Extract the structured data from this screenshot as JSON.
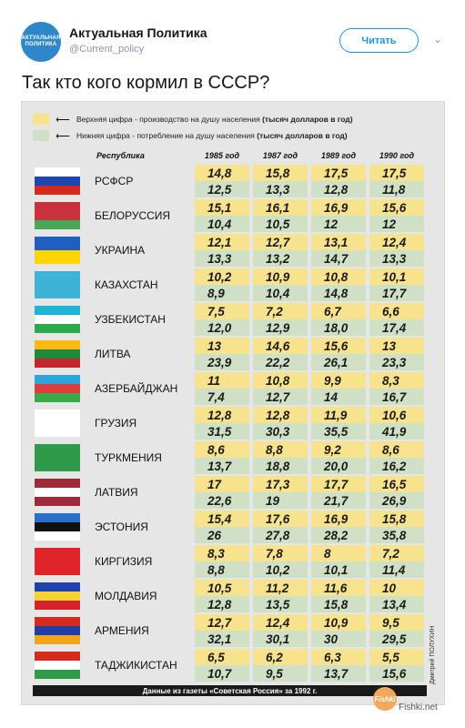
{
  "account": {
    "avatar_lines": [
      "АКТУАЛЬНАЯ",
      "ПОЛИТИКА"
    ],
    "name": "Актуальная Политика",
    "handle": "@Current_policy",
    "follow_label": "Читать",
    "menu_icon": "chevron-down-icon"
  },
  "tweet": {
    "text": "Так кто кого кормил в СССР?"
  },
  "table": {
    "legend": [
      {
        "text": "Верхняя цифра - производство на душу населения",
        "bold": "(тысяч долларов в год)",
        "color": "#f7e38e"
      },
      {
        "text": "Нижняя цифра - потребление на душу населения",
        "bold": "(тысяч долларов в год)",
        "color": "#cfe0c6"
      }
    ],
    "headers": [
      "Республика",
      "1985 год",
      "1987 год",
      "1989 год",
      "1990 год"
    ],
    "rows": [
      {
        "name": "РСФСР",
        "up": [
          "14,8",
          "15,8",
          "17,5",
          "17,5"
        ],
        "dn": [
          "12,5",
          "13,3",
          "12,8",
          "11,8"
        ],
        "flag": [
          "#ffffff",
          "#1c47b1",
          "#d52b1e"
        ]
      },
      {
        "name": "БЕЛОРУССИЯ",
        "up": [
          "15,1",
          "16,1",
          "16,9",
          "15,6"
        ],
        "dn": [
          "10,4",
          "10,5",
          "12",
          "12"
        ],
        "flag": [
          "#c8313e",
          "#c8313e",
          "#4aa657"
        ]
      },
      {
        "name": "УКРАИНА",
        "up": [
          "12,1",
          "12,7",
          "13,1",
          "12,4"
        ],
        "dn": [
          "13,3",
          "13,2",
          "14,7",
          "13,3"
        ],
        "flag": [
          "#1f5fbf",
          "#ffd500"
        ]
      },
      {
        "name": "КАЗАХСТАН",
        "up": [
          "10,2",
          "10,9",
          "10,8",
          "10,1"
        ],
        "dn": [
          "8,9",
          "10,4",
          "14,8",
          "17,7"
        ],
        "flag": [
          "#3fb3d6"
        ]
      },
      {
        "name": "УЗБЕКИСТАН",
        "up": [
          "7,5",
          "7,2",
          "6,7",
          "6,6"
        ],
        "dn": [
          "12,0",
          "12,9",
          "18,0",
          "17,4"
        ],
        "flag": [
          "#1eb4d8",
          "#ffffff",
          "#2fa84a"
        ]
      },
      {
        "name": "ЛИТВА",
        "up": [
          "13",
          "14,6",
          "15,6",
          "13"
        ],
        "dn": [
          "23,9",
          "22,2",
          "26,1",
          "23,3"
        ],
        "flag": [
          "#fdb913",
          "#1f8a3b",
          "#c1272d"
        ]
      },
      {
        "name": "АЗЕРБАЙДЖАН",
        "up": [
          "11",
          "10,8",
          "9,9",
          "8,3"
        ],
        "dn": [
          "7,4",
          "12,7",
          "14",
          "16,7"
        ],
        "flag": [
          "#2fa6d9",
          "#e03b3b",
          "#3aaa48"
        ]
      },
      {
        "name": "ГРУЗИЯ",
        "up": [
          "12,8",
          "12,8",
          "11,9",
          "10,6"
        ],
        "dn": [
          "31,5",
          "30,3",
          "35,5",
          "41,9"
        ],
        "flag": [
          "#ffffff"
        ]
      },
      {
        "name": "ТУРКМЕНИЯ",
        "up": [
          "8,6",
          "8,8",
          "9,2",
          "8,6"
        ],
        "dn": [
          "13,7",
          "18,8",
          "20,0",
          "16,2"
        ],
        "flag": [
          "#2f9a4a"
        ]
      },
      {
        "name": "ЛАТВИЯ",
        "up": [
          "17",
          "17,3",
          "17,7",
          "16,5"
        ],
        "dn": [
          "22,6",
          "19",
          "21,7",
          "26,9"
        ],
        "flag": [
          "#9e2a3a",
          "#ffffff",
          "#9e2a3a"
        ]
      },
      {
        "name": "ЭСТОНИЯ",
        "up": [
          "15,4",
          "17,6",
          "16,9",
          "15,8"
        ],
        "dn": [
          "26",
          "27,8",
          "28,2",
          "35,8"
        ],
        "flag": [
          "#2a6fc9",
          "#111111",
          "#ffffff"
        ]
      },
      {
        "name": "КИРГИЗИЯ",
        "up": [
          "8,3",
          "7,8",
          "8",
          "7,2"
        ],
        "dn": [
          "8,8",
          "10,2",
          "10,1",
          "11,4"
        ],
        "flag": [
          "#e0252a"
        ]
      },
      {
        "name": "МОЛДАВИЯ",
        "up": [
          "10,5",
          "11,2",
          "11,6",
          "10"
        ],
        "dn": [
          "12,8",
          "13,5",
          "15,8",
          "13,4"
        ],
        "flag": [
          "#1f43a8",
          "#f6d233",
          "#d4232b"
        ]
      },
      {
        "name": "АРМЕНИЯ",
        "up": [
          "12,7",
          "12,4",
          "10,9",
          "9,5"
        ],
        "dn": [
          "32,1",
          "30,1",
          "30",
          "29,5"
        ],
        "flag": [
          "#d52b1e",
          "#1f3fa6",
          "#f2a51a"
        ]
      },
      {
        "name": "ТАДЖИКИСТАН",
        "up": [
          "6,5",
          "6,2",
          "6,3",
          "5,5"
        ],
        "dn": [
          "10,7",
          "9,5",
          "13,7",
          "15,6"
        ],
        "flag": [
          "#d52b1e",
          "#ffffff",
          "#2f9a4a"
        ]
      }
    ],
    "footer": "Данные из газеты «Советская Россия» за 1992 г.",
    "credit": "Дмитрий ПОЛУХИН"
  },
  "watermark": {
    "logo": "Fishki",
    "text": "Fishki.net"
  }
}
